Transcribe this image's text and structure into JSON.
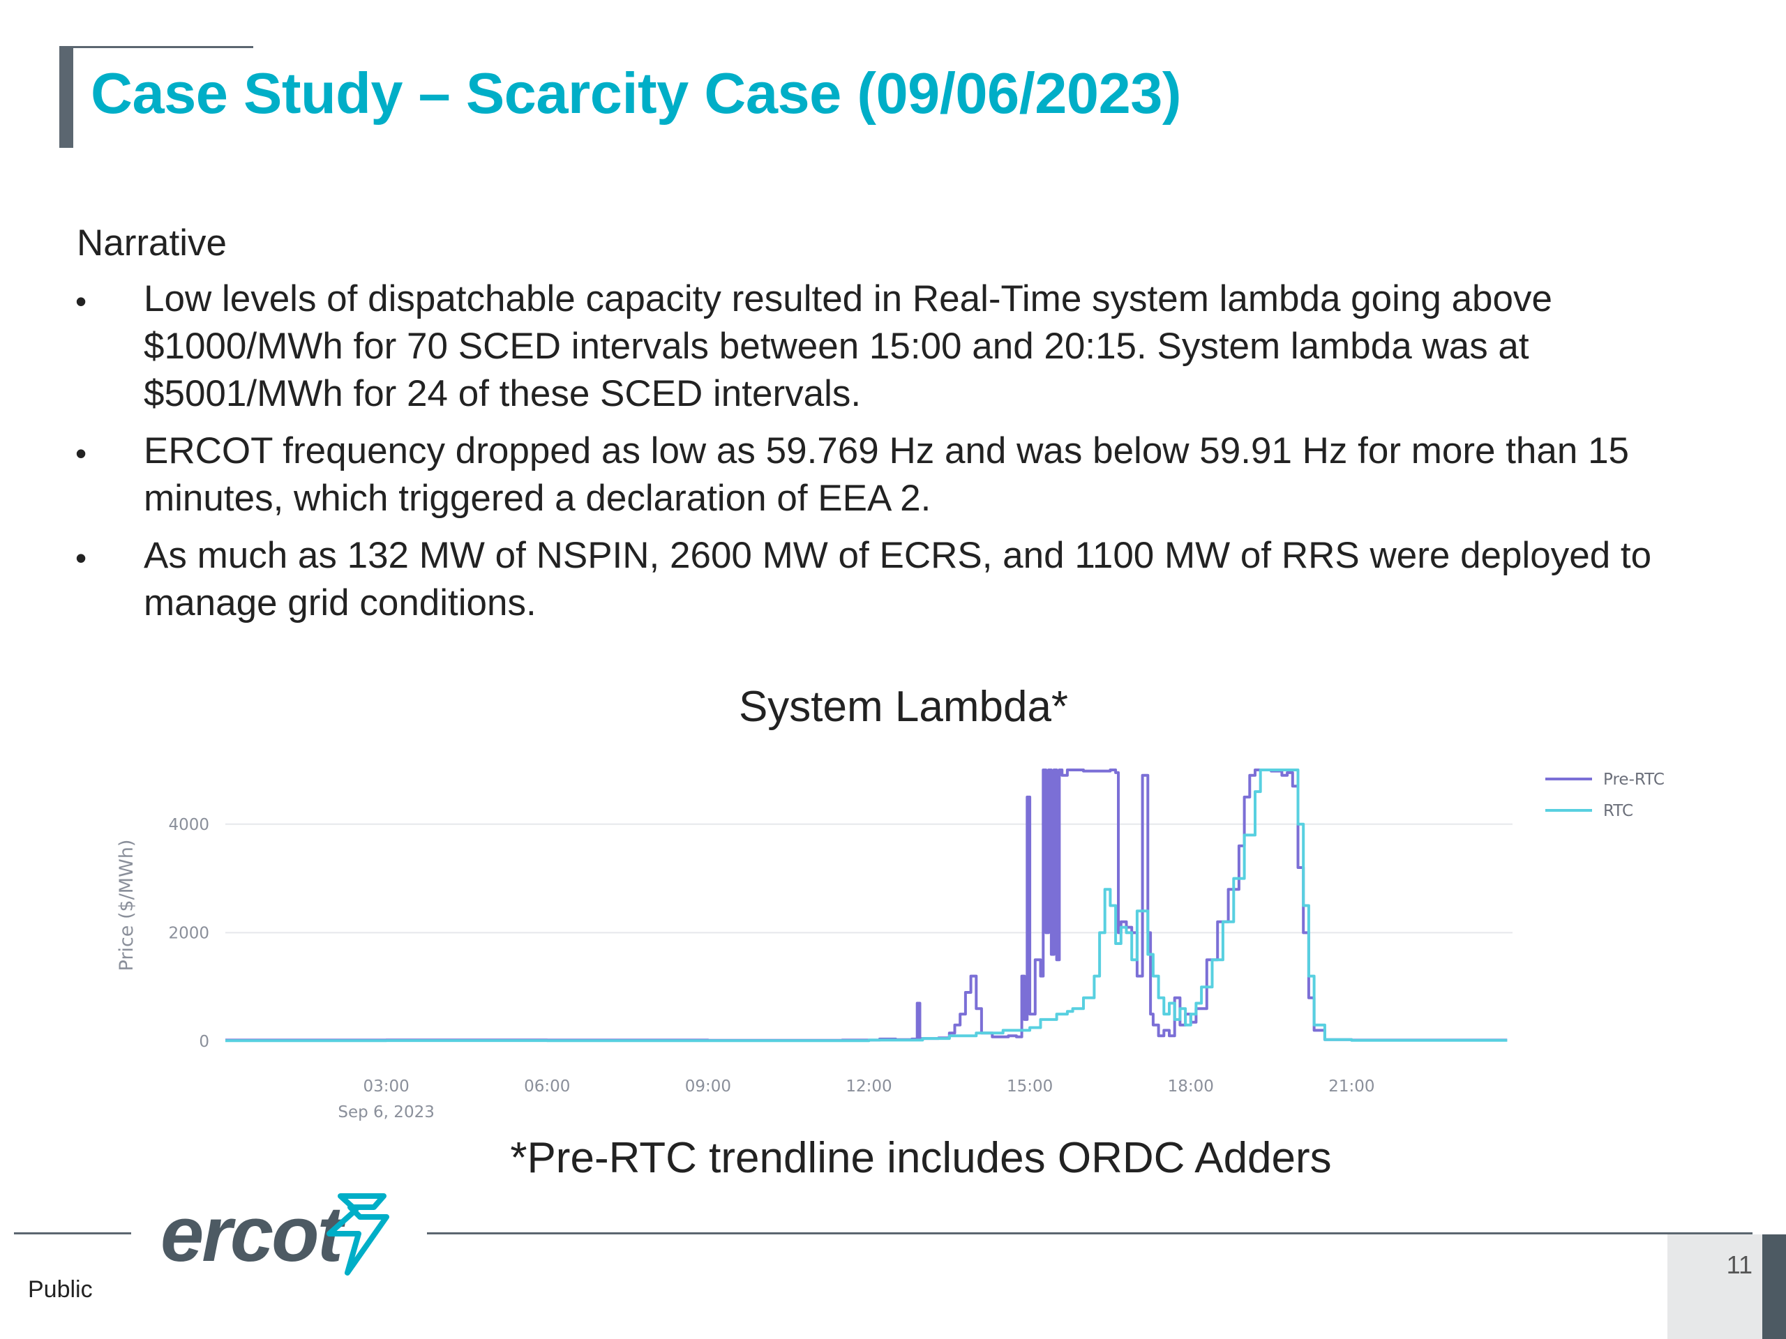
{
  "slide": {
    "title": "Case Study – Scarcity Case (09/06/2023)",
    "narrative_label": "Narrative",
    "bullet_glyph": "•",
    "bullets": [
      "Low levels of dispatchable capacity resulted in Real-Time system lambda going above $1000/MWh for 70 SCED intervals between 15:00 and 20:15. System lambda was at $5001/MWh for 24 of these SCED intervals.",
      "ERCOT frequency dropped as low as 59.769 Hz and was below 59.91 Hz for more than 15 minutes, which triggered a declaration of EEA 2.",
      "As much as 132 MW of NSPIN, 2600 MW of ECRS, and 1100 MW of RRS were deployed to manage grid conditions."
    ],
    "footnote": "*Pre-RTC trendline includes ORDC Adders"
  },
  "footer": {
    "logo_text": "ercot",
    "classification": "Public",
    "page_number": "11"
  },
  "colors": {
    "title": "#00aec7",
    "pre_rtc": "#7b6fd6",
    "rtc": "#58d0e0",
    "accent_bar": "#5b6670"
  },
  "chart_data": {
    "type": "line",
    "title": "System Lambda*",
    "ylabel": "Price ($/MWh)",
    "xlabel": "",
    "x_unit": "hour of Sep 6, 2023",
    "xlim": [
      0,
      24
    ],
    "ylim": [
      0,
      5000
    ],
    "y_ticks": [
      0,
      2000,
      4000
    ],
    "x_ticks": [
      {
        "value": 3,
        "label": "03:00",
        "sub": "Sep 6, 2023"
      },
      {
        "value": 6,
        "label": "06:00",
        "sub": ""
      },
      {
        "value": 9,
        "label": "09:00",
        "sub": ""
      },
      {
        "value": 12,
        "label": "12:00",
        "sub": ""
      },
      {
        "value": 15,
        "label": "15:00",
        "sub": ""
      },
      {
        "value": 18,
        "label": "18:00",
        "sub": ""
      },
      {
        "value": 21,
        "label": "21:00",
        "sub": ""
      }
    ],
    "grid": true,
    "legend_position": "top-right",
    "series": [
      {
        "name": "Pre-RTC",
        "color": "#7b6fd6",
        "points": [
          [
            0,
            20
          ],
          [
            3,
            22
          ],
          [
            6,
            20
          ],
          [
            9,
            15
          ],
          [
            11.5,
            20
          ],
          [
            12.2,
            40
          ],
          [
            12.5,
            30
          ],
          [
            12.8,
            40
          ],
          [
            12.9,
            700
          ],
          [
            12.95,
            50
          ],
          [
            13.3,
            60
          ],
          [
            13.5,
            150
          ],
          [
            13.6,
            300
          ],
          [
            13.7,
            500
          ],
          [
            13.8,
            900
          ],
          [
            13.9,
            1200
          ],
          [
            14.0,
            600
          ],
          [
            14.1,
            150
          ],
          [
            14.3,
            80
          ],
          [
            14.6,
            100
          ],
          [
            14.75,
            80
          ],
          [
            14.85,
            1200
          ],
          [
            14.9,
            400
          ],
          [
            14.95,
            4500
          ],
          [
            15.0,
            500
          ],
          [
            15.1,
            1500
          ],
          [
            15.2,
            1200
          ],
          [
            15.25,
            5000
          ],
          [
            15.3,
            2000
          ],
          [
            15.35,
            5000
          ],
          [
            15.4,
            1600
          ],
          [
            15.45,
            5000
          ],
          [
            15.5,
            1500
          ],
          [
            15.55,
            5000
          ],
          [
            15.6,
            4900
          ],
          [
            15.7,
            5000
          ],
          [
            16.0,
            4980
          ],
          [
            16.5,
            5000
          ],
          [
            16.6,
            4950
          ],
          [
            16.65,
            2000
          ],
          [
            16.7,
            2200
          ],
          [
            16.8,
            2100
          ],
          [
            16.9,
            2000
          ],
          [
            17.0,
            1200
          ],
          [
            17.1,
            4900
          ],
          [
            17.2,
            2000
          ],
          [
            17.25,
            500
          ],
          [
            17.3,
            300
          ],
          [
            17.4,
            100
          ],
          [
            17.5,
            200
          ],
          [
            17.6,
            100
          ],
          [
            17.7,
            800
          ],
          [
            17.8,
            300
          ],
          [
            17.9,
            500
          ],
          [
            18.0,
            350
          ],
          [
            18.1,
            600
          ],
          [
            18.3,
            1500
          ],
          [
            18.5,
            2200
          ],
          [
            18.7,
            2800
          ],
          [
            18.9,
            3600
          ],
          [
            19.0,
            4500
          ],
          [
            19.1,
            4900
          ],
          [
            19.2,
            5000
          ],
          [
            19.5,
            4980
          ],
          [
            19.7,
            4900
          ],
          [
            19.8,
            4950
          ],
          [
            19.9,
            4700
          ],
          [
            20.0,
            3200
          ],
          [
            20.1,
            2000
          ],
          [
            20.2,
            800
          ],
          [
            20.3,
            200
          ],
          [
            20.5,
            30
          ],
          [
            21,
            20
          ],
          [
            23.9,
            20
          ]
        ]
      },
      {
        "name": "RTC",
        "color": "#58d0e0",
        "points": [
          [
            0,
            10
          ],
          [
            3,
            12
          ],
          [
            6,
            10
          ],
          [
            9,
            10
          ],
          [
            12,
            20
          ],
          [
            13,
            50
          ],
          [
            13.5,
            100
          ],
          [
            14.0,
            150
          ],
          [
            14.5,
            200
          ],
          [
            15.0,
            250
          ],
          [
            15.2,
            400
          ],
          [
            15.5,
            500
          ],
          [
            15.7,
            550
          ],
          [
            15.8,
            600
          ],
          [
            16.0,
            800
          ],
          [
            16.2,
            1200
          ],
          [
            16.3,
            2000
          ],
          [
            16.4,
            2800
          ],
          [
            16.5,
            2500
          ],
          [
            16.6,
            1800
          ],
          [
            16.7,
            2100
          ],
          [
            16.8,
            2000
          ],
          [
            16.9,
            1500
          ],
          [
            17.0,
            2400
          ],
          [
            17.2,
            1600
          ],
          [
            17.3,
            1200
          ],
          [
            17.4,
            800
          ],
          [
            17.5,
            500
          ],
          [
            17.6,
            700
          ],
          [
            17.7,
            400
          ],
          [
            17.8,
            600
          ],
          [
            17.9,
            300
          ],
          [
            18.0,
            500
          ],
          [
            18.1,
            700
          ],
          [
            18.2,
            1000
          ],
          [
            18.4,
            1500
          ],
          [
            18.6,
            2200
          ],
          [
            18.8,
            3000
          ],
          [
            19.0,
            3800
          ],
          [
            19.2,
            4600
          ],
          [
            19.3,
            5000
          ],
          [
            19.8,
            5000
          ],
          [
            19.95,
            5000
          ],
          [
            20.0,
            4000
          ],
          [
            20.1,
            2500
          ],
          [
            20.2,
            1200
          ],
          [
            20.3,
            300
          ],
          [
            20.5,
            30
          ],
          [
            21,
            15
          ],
          [
            23.9,
            15
          ]
        ]
      }
    ]
  }
}
